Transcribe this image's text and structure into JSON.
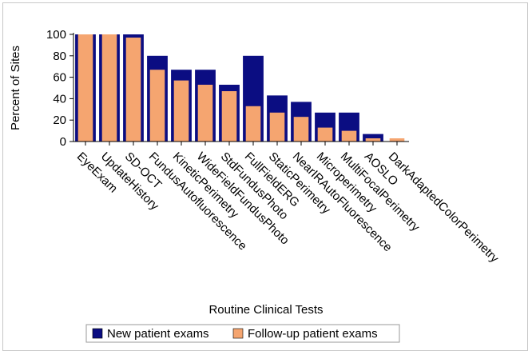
{
  "chart_data": {
    "type": "bar",
    "categories": [
      "EyeExam",
      "UpdateHistory",
      "SD-OCT",
      "FundusAutofluorescence",
      "KineticPerimetry",
      "WideFieldFundusPhoto",
      "StdFundusPhoto",
      "FullFieldERG",
      "StaticPerimetry",
      "NearIRAutoFluorescence",
      "Microperimetry",
      "MultiFocalPerimetry",
      "AOSLO",
      "DarkAdaptedColorPerimetry"
    ],
    "series": [
      {
        "name": "New patient exams",
        "color": "#0b0d82",
        "values": [
          100,
          100,
          100,
          80,
          67,
          67,
          53,
          80,
          43,
          37,
          27,
          27,
          7,
          0
        ]
      },
      {
        "name": "Follow-up patient exams",
        "color": "#f5a570",
        "values": [
          100,
          100,
          97,
          67,
          57,
          53,
          47,
          33,
          27,
          23,
          13,
          10,
          3,
          3
        ]
      }
    ],
    "xlabel": "Routine Clinical Tests",
    "ylabel": "Percent of Sites",
    "ylim": [
      0,
      100
    ],
    "yticks": [
      0,
      20,
      40,
      60,
      80,
      100
    ],
    "legend": "bottom",
    "grid": false
  }
}
